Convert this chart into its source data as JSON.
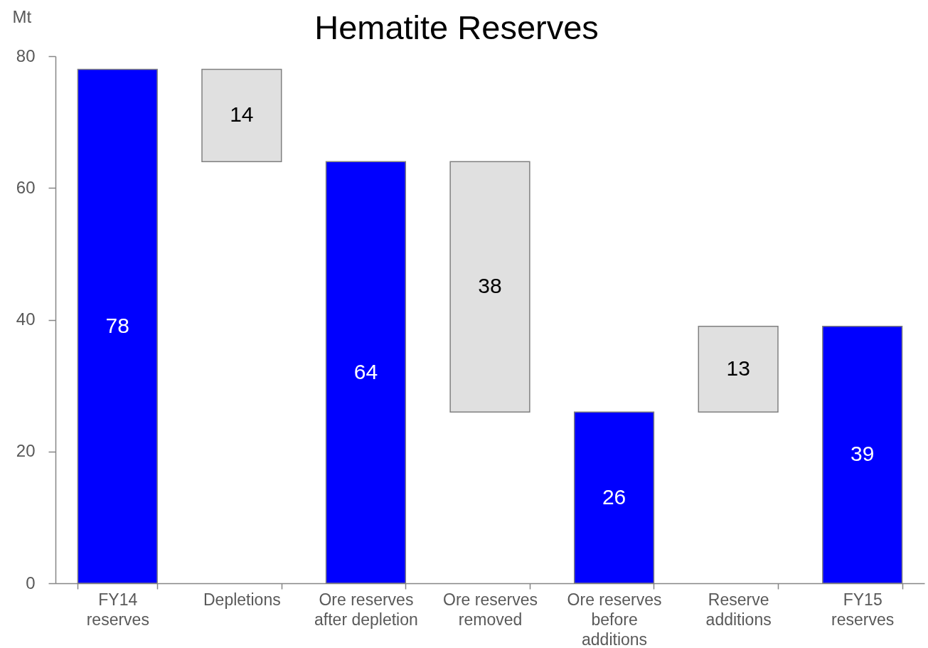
{
  "chart_data": {
    "type": "bar",
    "title": "Hematite Reserves",
    "ylabel": "Mt",
    "categories": [
      "FY14 reserves",
      "Depletions",
      "Ore reserves after depletion",
      "Ore reserves removed",
      "Ore reserves before additions",
      "Reserve additions",
      "FY15 reserves"
    ],
    "values": [
      78,
      14,
      64,
      38,
      26,
      13,
      39
    ],
    "base": [
      0,
      64,
      0,
      26,
      0,
      26,
      0
    ],
    "colors": [
      "#0000ff",
      "#e0e0e0",
      "#0000ff",
      "#e0e0e0",
      "#0000ff",
      "#e0e0e0",
      "#0000ff"
    ],
    "ylim": [
      0,
      80
    ],
    "yticks": [
      0,
      20,
      40,
      60,
      80
    ],
    "data_labels": true
  }
}
